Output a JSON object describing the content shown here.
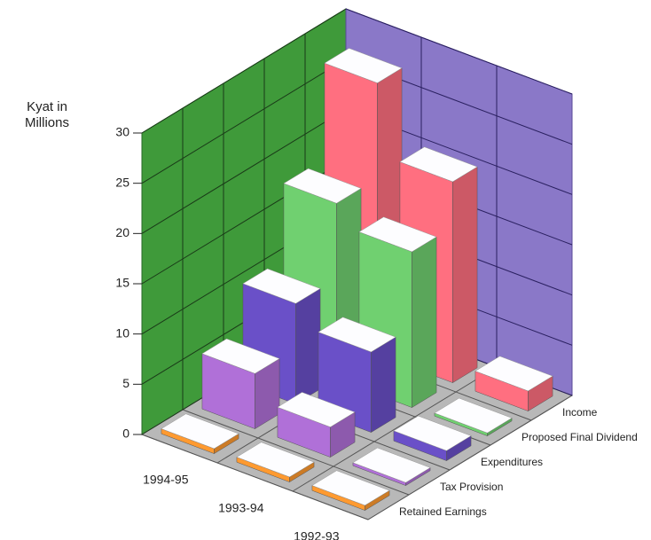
{
  "chart_data": {
    "type": "bar3d",
    "y_label": "Kyat in Millions",
    "categories": [
      "1994-95",
      "1993-94",
      "1992-93"
    ],
    "series": [
      {
        "name": "Income",
        "color": "#ff6f80",
        "values": [
          27,
          20,
          2
        ]
      },
      {
        "name": "Proposed Final Dividend",
        "color": "#70d070",
        "values": [
          17.5,
          15.5,
          0.3
        ]
      },
      {
        "name": "Expenditures",
        "color": "#6a50c8",
        "values": [
          10,
          8,
          1
        ]
      },
      {
        "name": "Tax Provision",
        "color": "#b070d8",
        "values": [
          5.5,
          3,
          0.3
        ]
      },
      {
        "name": "Retained Earnings",
        "color": "#ff9a30",
        "values": [
          0.5,
          0.5,
          0.5
        ]
      }
    ],
    "ylim": [
      0,
      30
    ],
    "yticks": [
      0,
      5,
      10,
      15,
      20,
      25,
      30
    ],
    "grid": true
  }
}
